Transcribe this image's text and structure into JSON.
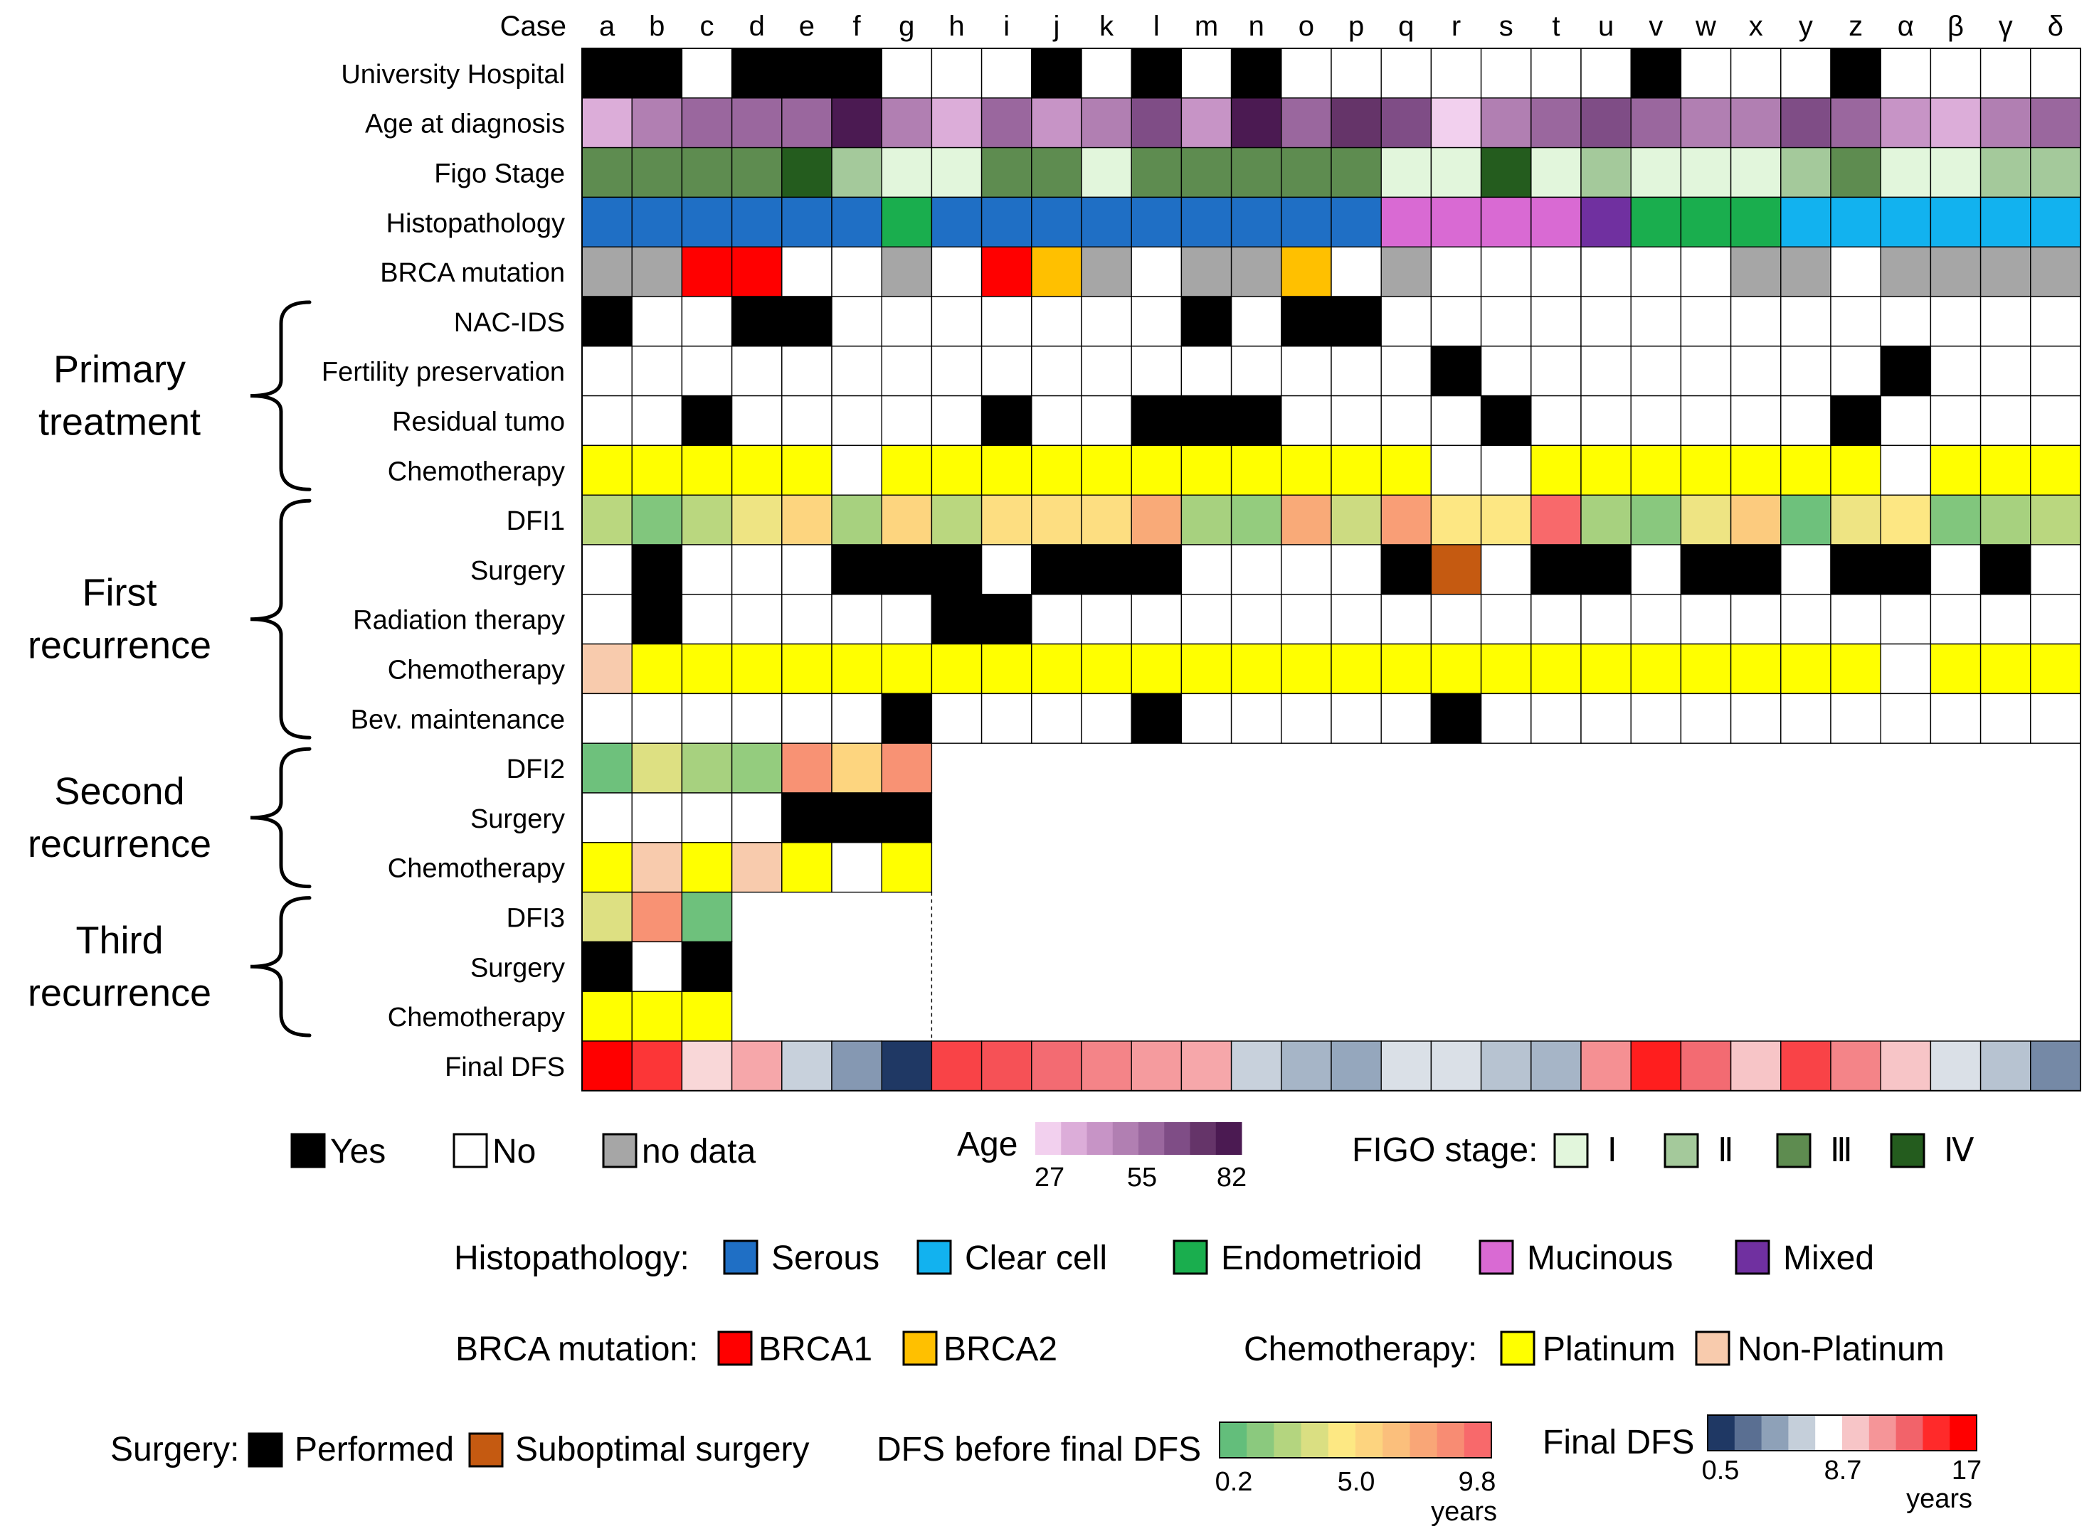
{
  "chart_data": {
    "type": "heatmap",
    "corner_label": "Case",
    "cases": [
      "a",
      "b",
      "c",
      "d",
      "e",
      "f",
      "g",
      "h",
      "i",
      "j",
      "k",
      "l",
      "m",
      "n",
      "o",
      "p",
      "q",
      "r",
      "s",
      "t",
      "u",
      "v",
      "w",
      "x",
      "y",
      "z",
      "α",
      "β",
      "γ",
      "δ"
    ],
    "row_labels": [
      "University Hospital",
      "Age at diagnosis",
      "Figo Stage",
      "Histopathology",
      "BRCA mutation",
      "NAC-IDS",
      "Fertility preservation",
      "Residual tumo",
      "Chemotherapy",
      "DFI1",
      "Surgery",
      "Radiation therapy",
      "Chemotherapy",
      "Bev. maintenance",
      "DFI2",
      "Surgery",
      "Chemotherapy",
      "DFI3",
      "Surgery",
      "Chemotherapy",
      "Final DFS"
    ],
    "groups": [
      {
        "label_lines": [
          "Primary",
          "treatment"
        ],
        "first_row": 5,
        "last_row": 8
      },
      {
        "label_lines": [
          "First",
          "recurrence"
        ],
        "first_row": 9,
        "last_row": 13
      },
      {
        "label_lines": [
          "Second",
          "recurrence"
        ],
        "first_row": 14,
        "last_row": 16
      },
      {
        "label_lines": [
          "Third",
          "recurrence"
        ],
        "first_row": 17,
        "last_row": 19
      }
    ],
    "rows": [
      [
        "Y",
        "Y",
        "N",
        "Y",
        "Y",
        "Y",
        "N",
        "N",
        "N",
        "Y",
        "N",
        "Y",
        "N",
        "Y",
        "N",
        "N",
        "N",
        "N",
        "N",
        "N",
        "N",
        "Y",
        "N",
        "N",
        "N",
        "Y",
        "N",
        "N",
        "N",
        "N"
      ],
      [
        "A2",
        "A4",
        "A5",
        "A5",
        "A5",
        "A8",
        "A4",
        "A2",
        "A5",
        "A3",
        "A4",
        "A6",
        "A3",
        "A8",
        "A5",
        "A7",
        "A6",
        "A1",
        "A4",
        "A5",
        "A6",
        "A5",
        "A4",
        "A4",
        "A6",
        "A5",
        "A3",
        "A2",
        "A4",
        "A5"
      ],
      [
        "F3",
        "F3",
        "F3",
        "F3",
        "F4",
        "F2",
        "F1",
        "F1",
        "F3",
        "F3",
        "F1",
        "F3",
        "F3",
        "F3",
        "F3",
        "F3",
        "F1",
        "F1",
        "F4",
        "F1",
        "F2",
        "F1",
        "F1",
        "F1",
        "F2",
        "F3",
        "F1",
        "F1",
        "F2",
        "F2"
      ],
      [
        "S",
        "S",
        "S",
        "S",
        "S",
        "S",
        "E",
        "S",
        "S",
        "S",
        "S",
        "S",
        "S",
        "S",
        "S",
        "S",
        "M",
        "M",
        "M",
        "M",
        "X",
        "E",
        "E",
        "E",
        "C",
        "C",
        "C",
        "C",
        "C",
        "C"
      ],
      [
        "ND",
        "ND",
        "B1",
        "B1",
        "N",
        "N",
        "ND",
        "N",
        "B1",
        "B2",
        "ND",
        "N",
        "ND",
        "ND",
        "B2",
        "N",
        "ND",
        "N",
        "N",
        "N",
        "N",
        "N",
        "N",
        "ND",
        "ND",
        "N",
        "ND",
        "ND",
        "ND",
        "ND"
      ],
      [
        "Y",
        "N",
        "N",
        "Y",
        "Y",
        "N",
        "N",
        "N",
        "N",
        "N",
        "N",
        "N",
        "Y",
        "N",
        "Y",
        "Y",
        "N",
        "N",
        "N",
        "N",
        "N",
        "N",
        "N",
        "N",
        "N",
        "N",
        "N",
        "N",
        "N",
        "N"
      ],
      [
        "N",
        "N",
        "N",
        "N",
        "N",
        "N",
        "N",
        "N",
        "N",
        "N",
        "N",
        "N",
        "N",
        "N",
        "N",
        "N",
        "N",
        "Y",
        "N",
        "N",
        "N",
        "N",
        "N",
        "N",
        "N",
        "N",
        "Y",
        "N",
        "N",
        "N"
      ],
      [
        "N",
        "N",
        "Y",
        "N",
        "N",
        "N",
        "N",
        "N",
        "Y",
        "N",
        "N",
        "Y",
        "Y",
        "Y",
        "N",
        "N",
        "N",
        "N",
        "Y",
        "N",
        "N",
        "N",
        "N",
        "N",
        "N",
        "Y",
        "N",
        "N",
        "N",
        "N"
      ],
      [
        "P",
        "P",
        "P",
        "P",
        "P",
        "N",
        "P",
        "P",
        "P",
        "P",
        "P",
        "P",
        "P",
        "P",
        "P",
        "P",
        "P",
        "N",
        "N",
        "P",
        "P",
        "P",
        "P",
        "P",
        "P",
        "P",
        "N",
        "P",
        "P",
        "P"
      ],
      [
        2.5,
        1.0,
        2.5,
        4.0,
        5.5,
        2.0,
        5.5,
        2.5,
        5.0,
        5.0,
        5.0,
        7.5,
        2.0,
        1.5,
        7.5,
        3.0,
        8.0,
        4.5,
        4.5,
        9.8,
        2.0,
        1.2,
        4.0,
        6.0,
        0.5,
        4.0,
        4.5,
        1.0,
        2.0,
        2.5
      ],
      [
        "N",
        "Y",
        "N",
        "N",
        "N",
        "Y",
        "Y",
        "Y",
        "N",
        "Y",
        "Y",
        "Y",
        "N",
        "N",
        "N",
        "N",
        "Y",
        "SO",
        "N",
        "Y",
        "Y",
        "N",
        "Y",
        "Y",
        "N",
        "Y",
        "Y",
        "N",
        "Y",
        "N"
      ],
      [
        "N",
        "Y",
        "N",
        "N",
        "N",
        "N",
        "N",
        "Y",
        "Y",
        "N",
        "N",
        "N",
        "N",
        "N",
        "N",
        "N",
        "N",
        "N",
        "N",
        "N",
        "N",
        "N",
        "N",
        "N",
        "N",
        "N",
        "N",
        "N",
        "N",
        "N"
      ],
      [
        "NP",
        "P",
        "P",
        "P",
        "P",
        "P",
        "P",
        "P",
        "P",
        "P",
        "P",
        "P",
        "P",
        "P",
        "P",
        "P",
        "P",
        "P",
        "P",
        "P",
        "P",
        "P",
        "P",
        "P",
        "P",
        "P",
        "N",
        "P",
        "P",
        "P"
      ],
      [
        "N",
        "N",
        "N",
        "N",
        "N",
        "N",
        "Y",
        "N",
        "N",
        "N",
        "N",
        "Y",
        "N",
        "N",
        "N",
        "N",
        "N",
        "Y",
        "N",
        "N",
        "N",
        "N",
        "N",
        "N",
        "N",
        "N",
        "N",
        "N",
        "N",
        "N"
      ],
      [
        0.5,
        3.5,
        2.0,
        1.5,
        8.5,
        5.5,
        8.5,
        null,
        null,
        null,
        null,
        null,
        null,
        null,
        null,
        null,
        null,
        null,
        null,
        null,
        null,
        null,
        null,
        null,
        null,
        null,
        null,
        null,
        null,
        null
      ],
      [
        "N",
        "N",
        "N",
        "N",
        "Y",
        "Y",
        "Y",
        null,
        null,
        null,
        null,
        null,
        null,
        null,
        null,
        null,
        null,
        null,
        null,
        null,
        null,
        null,
        null,
        null,
        null,
        null,
        null,
        null,
        null,
        null
      ],
      [
        "P",
        "NP",
        "P",
        "NP",
        "P",
        "N",
        "P",
        null,
        null,
        null,
        null,
        null,
        null,
        null,
        null,
        null,
        null,
        null,
        null,
        null,
        null,
        null,
        null,
        null,
        null,
        null,
        null,
        null,
        null,
        null
      ],
      [
        3.5,
        8.5,
        0.5,
        null,
        null,
        null,
        null,
        null,
        null,
        null,
        null,
        null,
        null,
        null,
        null,
        null,
        null,
        null,
        null,
        null,
        null,
        null,
        null,
        null,
        null,
        null,
        null,
        null,
        null,
        null
      ],
      [
        "Y",
        "N",
        "Y",
        null,
        null,
        null,
        null,
        null,
        null,
        null,
        null,
        null,
        null,
        null,
        null,
        null,
        null,
        null,
        null,
        null,
        null,
        null,
        null,
        null,
        null,
        null,
        null,
        null,
        null,
        null
      ],
      [
        "P",
        "P",
        "P",
        null,
        null,
        null,
        null,
        null,
        null,
        null,
        null,
        null,
        null,
        null,
        null,
        null,
        null,
        null,
        null,
        null,
        null,
        null,
        null,
        null,
        null,
        null,
        null,
        null,
        null,
        null
      ],
      [
        17,
        14.5,
        8.2,
        10,
        5.5,
        3.5,
        0.5,
        14,
        13.5,
        12.5,
        11.5,
        10.5,
        10,
        5.5,
        4.5,
        4,
        6,
        6,
        5,
        4.5,
        11,
        15.5,
        12.5,
        8.7,
        14,
        11.5,
        8.7,
        6,
        5,
        3
      ]
    ],
    "category_colors": {
      "Y": "#000000",
      "N": "#ffffff",
      "ND": "#a6a6a6",
      "B1": "#ff0000",
      "B2": "#ffc000",
      "P": "#ffff00",
      "NP": "#f8cbad",
      "SO": "#c55a11",
      "S": "#1f6fc5",
      "C": "#12b2ef",
      "E": "#1aae4e",
      "M": "#d96ad3",
      "X": "#7030a0",
      "F1": "#e2f6dc",
      "F2": "#a4c99b",
      "F3": "#5e8c50",
      "F4": "#245c1e",
      "A1": "#f2d0ee",
      "A2": "#dcadd9",
      "A3": "#c794c6",
      "A4": "#b17fb2",
      "A5": "#9a679e",
      "A6": "#7f4d86",
      "A7": "#653469",
      "A8": "#4b1a52"
    },
    "legends": {
      "yes_no": [
        {
          "code": "Y",
          "label": "Yes"
        },
        {
          "code": "N",
          "label": "No"
        },
        {
          "code": "ND",
          "label": "no data"
        }
      ],
      "age": {
        "title": "Age",
        "colors": [
          "#f2d0ee",
          "#dcadd9",
          "#c794c6",
          "#b17fb2",
          "#9a679e",
          "#7f4d86",
          "#653469",
          "#4b1a52"
        ],
        "ticks": [
          "27",
          "55",
          "82"
        ]
      },
      "figo": {
        "title": "FIGO stage:",
        "items": [
          {
            "code": "F1",
            "label": "Ⅰ"
          },
          {
            "code": "F2",
            "label": "Ⅱ"
          },
          {
            "code": "F3",
            "label": "Ⅲ"
          },
          {
            "code": "F4",
            "label": "Ⅳ"
          }
        ]
      },
      "histo": {
        "title": "Histopathology:",
        "items": [
          {
            "code": "S",
            "label": "Serous"
          },
          {
            "code": "C",
            "label": "Clear cell"
          },
          {
            "code": "E",
            "label": "Endometrioid"
          },
          {
            "code": "M",
            "label": "Mucinous"
          },
          {
            "code": "X",
            "label": "Mixed"
          }
        ]
      },
      "brca": {
        "title": "BRCA mutation:",
        "items": [
          {
            "code": "B1",
            "label": "BRCA1"
          },
          {
            "code": "B2",
            "label": "BRCA2"
          }
        ]
      },
      "chemo": {
        "title": "Chemotherapy:",
        "items": [
          {
            "code": "P",
            "label": "Platinum"
          },
          {
            "code": "NP",
            "label": "Non-Platinum"
          }
        ]
      },
      "surgery": {
        "title": "Surgery:",
        "items": [
          {
            "code": "Y",
            "label": "Performed"
          },
          {
            "code": "SO",
            "label": "Suboptimal surgery"
          }
        ]
      },
      "dfs_before": {
        "title": "DFS before final DFS",
        "colors": [
          "#63be7b",
          "#8bc97e",
          "#b4d57f",
          "#dadf82",
          "#fde883",
          "#fdd47f",
          "#fbbf7c",
          "#f9a677",
          "#f88c73",
          "#f8696b"
        ],
        "ticks": [
          "0.2",
          "5.0",
          "9.8"
        ],
        "unit": "years",
        "min": 0.2,
        "max": 9.8
      },
      "final_dfs": {
        "title": "Final DFS",
        "colors": [
          "#1f3864",
          "#5a6f92",
          "#8ea1b8",
          "#c5cfda",
          "#ffffff",
          "#f7c5c7",
          "#f59598",
          "#f2636a",
          "#ff2a2a",
          "#ff0000"
        ],
        "ticks": [
          "0.5",
          "8.7",
          "17"
        ],
        "unit": "years",
        "min": 0.5,
        "mid": 8.7,
        "max": 17
      }
    }
  }
}
